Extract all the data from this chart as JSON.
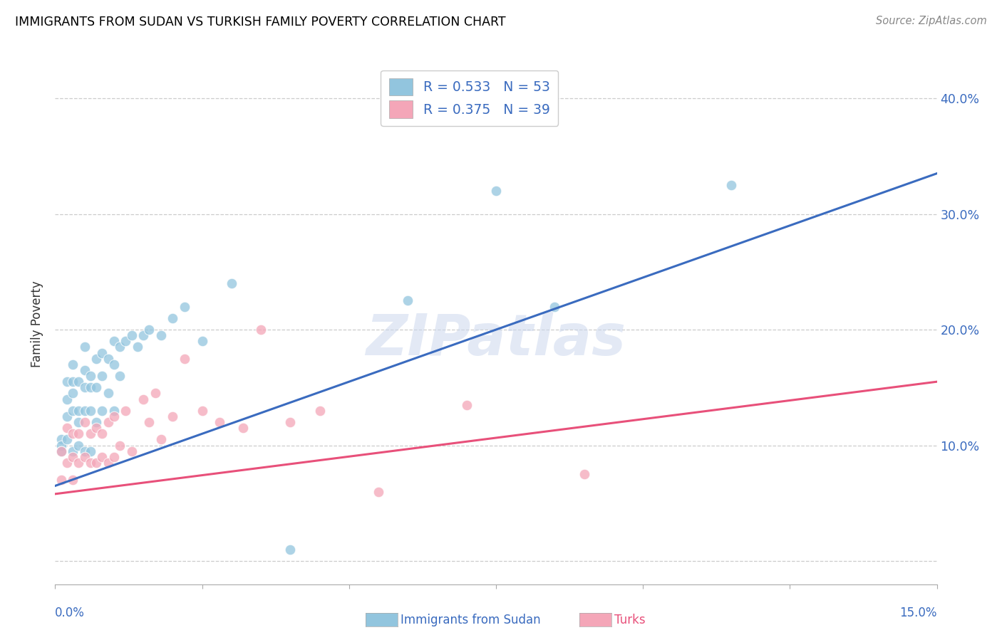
{
  "title": "IMMIGRANTS FROM SUDAN VS TURKISH FAMILY POVERTY CORRELATION CHART",
  "source": "Source: ZipAtlas.com",
  "ylabel": "Family Poverty",
  "xlim": [
    0.0,
    0.15
  ],
  "ylim": [
    -0.02,
    0.43
  ],
  "ytick_vals": [
    0.0,
    0.1,
    0.2,
    0.3,
    0.4
  ],
  "ytick_labels": [
    "",
    "10.0%",
    "20.0%",
    "30.0%",
    "40.0%"
  ],
  "legend_r_sudan": "R = 0.533",
  "legend_n_sudan": "N = 53",
  "legend_r_turks": "R = 0.375",
  "legend_n_turks": "N = 39",
  "color_sudan": "#92c5de",
  "color_turks": "#f4a6b8",
  "line_color_sudan": "#3a6bbf",
  "line_color_turks": "#e8507a",
  "watermark": "ZIPatlas",
  "sudan_line_x0": 0.0,
  "sudan_line_y0": 0.065,
  "sudan_line_x1": 0.15,
  "sudan_line_y1": 0.335,
  "turks_line_x0": 0.0,
  "turks_line_y0": 0.058,
  "turks_line_x1": 0.15,
  "turks_line_y1": 0.155,
  "sudan_x": [
    0.001,
    0.001,
    0.001,
    0.002,
    0.002,
    0.002,
    0.002,
    0.003,
    0.003,
    0.003,
    0.003,
    0.003,
    0.004,
    0.004,
    0.004,
    0.004,
    0.005,
    0.005,
    0.005,
    0.005,
    0.005,
    0.006,
    0.006,
    0.006,
    0.006,
    0.007,
    0.007,
    0.007,
    0.008,
    0.008,
    0.008,
    0.009,
    0.009,
    0.01,
    0.01,
    0.01,
    0.011,
    0.011,
    0.012,
    0.013,
    0.014,
    0.015,
    0.016,
    0.018,
    0.02,
    0.022,
    0.025,
    0.03,
    0.04,
    0.06,
    0.075,
    0.085,
    0.115
  ],
  "sudan_y": [
    0.105,
    0.1,
    0.095,
    0.155,
    0.14,
    0.125,
    0.105,
    0.17,
    0.155,
    0.145,
    0.13,
    0.095,
    0.155,
    0.13,
    0.12,
    0.1,
    0.185,
    0.165,
    0.15,
    0.13,
    0.095,
    0.16,
    0.15,
    0.13,
    0.095,
    0.175,
    0.15,
    0.12,
    0.18,
    0.16,
    0.13,
    0.175,
    0.145,
    0.19,
    0.17,
    0.13,
    0.185,
    0.16,
    0.19,
    0.195,
    0.185,
    0.195,
    0.2,
    0.195,
    0.21,
    0.22,
    0.19,
    0.24,
    0.01,
    0.225,
    0.32,
    0.22,
    0.325
  ],
  "turks_x": [
    0.001,
    0.001,
    0.002,
    0.002,
    0.003,
    0.003,
    0.003,
    0.004,
    0.004,
    0.005,
    0.005,
    0.006,
    0.006,
    0.007,
    0.007,
    0.008,
    0.008,
    0.009,
    0.009,
    0.01,
    0.01,
    0.011,
    0.012,
    0.013,
    0.015,
    0.016,
    0.017,
    0.018,
    0.02,
    0.022,
    0.025,
    0.028,
    0.032,
    0.035,
    0.04,
    0.045,
    0.055,
    0.07,
    0.09
  ],
  "turks_y": [
    0.095,
    0.07,
    0.115,
    0.085,
    0.11,
    0.09,
    0.07,
    0.11,
    0.085,
    0.12,
    0.09,
    0.11,
    0.085,
    0.115,
    0.085,
    0.11,
    0.09,
    0.12,
    0.085,
    0.125,
    0.09,
    0.1,
    0.13,
    0.095,
    0.14,
    0.12,
    0.145,
    0.105,
    0.125,
    0.175,
    0.13,
    0.12,
    0.115,
    0.2,
    0.12,
    0.13,
    0.06,
    0.135,
    0.075
  ]
}
